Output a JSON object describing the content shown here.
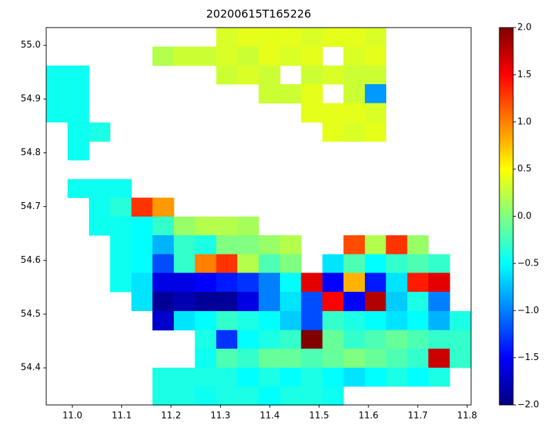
{
  "chart_data": {
    "type": "heatmap",
    "title": "20200615T165226",
    "colormap": "jet",
    "x": [
      10.969,
      11.012,
      11.055,
      11.098,
      11.141,
      11.184,
      11.227,
      11.27,
      11.313,
      11.356,
      11.399,
      11.442,
      11.485,
      11.528,
      11.571,
      11.614,
      11.657,
      11.7,
      11.743,
      11.786
    ],
    "y": [
      55.015,
      54.98,
      54.945,
      54.91,
      54.875,
      54.839,
      54.804,
      54.769,
      54.734,
      54.699,
      54.664,
      54.629,
      54.594,
      54.559,
      54.524,
      54.488,
      54.453,
      54.418,
      54.383,
      54.348
    ],
    "values": [
      [
        null,
        null,
        null,
        null,
        null,
        null,
        null,
        null,
        0.35,
        0.4,
        0.4,
        0.4,
        0.35,
        0.4,
        0.4,
        0.35,
        null,
        null,
        null,
        null
      ],
      [
        null,
        null,
        null,
        null,
        null,
        0.2,
        0.3,
        0.3,
        0.35,
        0.3,
        0.4,
        0.35,
        0.4,
        null,
        0.35,
        0.4,
        null,
        null,
        null,
        null
      ],
      [
        -0.45,
        -0.45,
        null,
        null,
        null,
        null,
        null,
        null,
        0.3,
        0.35,
        0.3,
        null,
        0.3,
        0.35,
        0.3,
        0.3,
        null,
        null,
        null,
        null
      ],
      [
        -0.45,
        -0.45,
        null,
        null,
        null,
        null,
        null,
        null,
        null,
        null,
        0.3,
        0.3,
        0.4,
        null,
        0.3,
        -0.9,
        null,
        null,
        null,
        null
      ],
      [
        -0.45,
        -0.45,
        null,
        null,
        null,
        null,
        null,
        null,
        null,
        null,
        null,
        null,
        0.4,
        0.4,
        0.4,
        0.35,
        null,
        null,
        null,
        null
      ],
      [
        null,
        -0.45,
        -0.4,
        null,
        null,
        null,
        null,
        null,
        null,
        null,
        null,
        null,
        null,
        0.4,
        0.35,
        0.4,
        null,
        null,
        null,
        null
      ],
      [
        null,
        -0.45,
        null,
        null,
        null,
        null,
        null,
        null,
        null,
        null,
        null,
        null,
        null,
        null,
        null,
        null,
        null,
        null,
        null,
        null
      ],
      [
        null,
        null,
        null,
        null,
        null,
        null,
        null,
        null,
        null,
        null,
        null,
        null,
        null,
        null,
        null,
        null,
        null,
        null,
        null,
        null
      ],
      [
        null,
        -0.45,
        -0.45,
        -0.45,
        null,
        null,
        null,
        null,
        null,
        null,
        null,
        null,
        null,
        null,
        null,
        null,
        null,
        null,
        null,
        null
      ],
      [
        null,
        null,
        -0.45,
        -0.35,
        1.3,
        0.9,
        null,
        null,
        null,
        null,
        null,
        null,
        null,
        null,
        null,
        null,
        null,
        null,
        null,
        null
      ],
      [
        null,
        null,
        -0.45,
        -0.45,
        -0.5,
        -0.3,
        0.1,
        0.2,
        0.2,
        0.15,
        null,
        null,
        null,
        null,
        null,
        null,
        null,
        null,
        null,
        null
      ],
      [
        null,
        null,
        null,
        -0.45,
        -0.5,
        -0.8,
        -0.3,
        -0.4,
        0,
        0,
        0.1,
        0.2,
        null,
        null,
        1.2,
        0.2,
        1.3,
        0.1,
        null,
        null
      ],
      [
        null,
        null,
        null,
        -0.45,
        -0.5,
        -1.2,
        -0.3,
        1.0,
        1.3,
        0.2,
        -0.2,
        0,
        null,
        -0.6,
        -0.2,
        -0.5,
        -0.3,
        -0.2,
        -0.3,
        null
      ],
      [
        null,
        null,
        null,
        -0.45,
        -0.6,
        -1.6,
        -1.6,
        -1.5,
        -1.4,
        -1.3,
        -1,
        -0.5,
        1.6,
        -1.5,
        0.8,
        -1.4,
        -0.6,
        1.4,
        1.6,
        null
      ],
      [
        null,
        null,
        null,
        null,
        -0.6,
        -1.9,
        -1.8,
        -1.9,
        -1.9,
        -1.6,
        -1,
        -0.6,
        -1.2,
        1.5,
        -1.5,
        1.8,
        -0.7,
        -0.4,
        -1,
        null
      ],
      [
        null,
        null,
        null,
        null,
        null,
        -1.7,
        -0.6,
        -0.5,
        -0.3,
        -0.4,
        -0.5,
        -0.7,
        -1.2,
        -0.3,
        -0.4,
        -0.5,
        -0.6,
        -0.5,
        -0.8,
        -0.4
      ],
      [
        null,
        null,
        null,
        null,
        null,
        null,
        null,
        -0.4,
        -1.3,
        -0.5,
        -0.4,
        -0.3,
        2,
        -0.1,
        -0.3,
        -0.2,
        -0.1,
        -0.2,
        -0.3,
        -0.3
      ],
      [
        null,
        null,
        null,
        null,
        null,
        null,
        null,
        -0.45,
        -0.2,
        -0.3,
        -0.1,
        -0.1,
        -0.2,
        -0.1,
        0,
        -0.1,
        -0.2,
        -0.3,
        1.7,
        -0.3
      ],
      [
        null,
        null,
        null,
        null,
        null,
        -0.4,
        -0.4,
        -0.4,
        -0.4,
        -0.5,
        -0.4,
        -0.5,
        -0.4,
        -0.5,
        -0.6,
        -0.5,
        -0.4,
        -0.5,
        -0.4,
        null
      ],
      [
        null,
        null,
        null,
        null,
        null,
        -0.4,
        -0.4,
        -0.45,
        -0.4,
        -0.4,
        -0.5,
        -0.4,
        -0.4,
        -0.45,
        null,
        null,
        null,
        null,
        null,
        null
      ]
    ],
    "xlim": [
      10.947,
      11.808
    ],
    "xticks": [
      {
        "value": 11,
        "label": "11.0"
      },
      11.1,
      11.2,
      11.3,
      11.4,
      11.5,
      11.6,
      11.7,
      11.8
    ],
    "ylim": [
      54.331,
      55.033
    ],
    "yticks": [
      54.4,
      54.5,
      54.6,
      54.7,
      54.8,
      54.9,
      {
        "value": 55,
        "label": "55.0"
      }
    ],
    "clim": [
      -2,
      2
    ],
    "cticks": [
      {
        "value": -2,
        "label": "−2.0"
      },
      {
        "value": -1.5,
        "label": "−1.5"
      },
      {
        "value": -1,
        "label": "−1.0"
      },
      {
        "value": -0.5,
        "label": "−0.5"
      },
      {
        "value": 0,
        "label": "0.0"
      },
      0.5,
      {
        "value": 1,
        "label": "1.0"
      },
      1.5,
      {
        "value": 2,
        "label": "2.0"
      }
    ]
  }
}
